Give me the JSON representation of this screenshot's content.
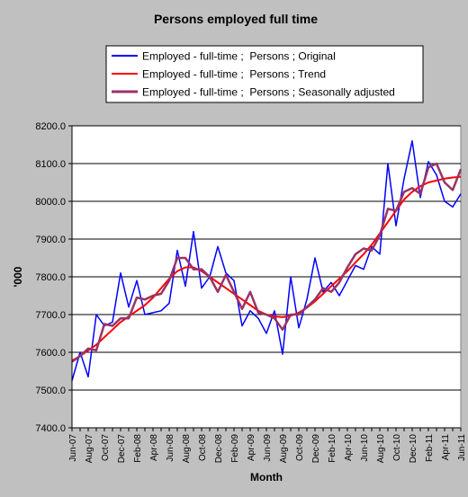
{
  "chart_data": {
    "type": "line",
    "title": "Persons employed full time",
    "xlabel": "Month",
    "ylabel": "'000",
    "ylim": [
      7400,
      8200
    ],
    "yticks": [
      "7400.0",
      "7500.0",
      "7600.0",
      "7700.0",
      "7800.0",
      "7900.0",
      "8000.0",
      "8100.0",
      "8200.0"
    ],
    "grid": true,
    "legend_position": "top",
    "x": [
      "Jun-07",
      "Jul-07",
      "Aug-07",
      "Sep-07",
      "Oct-07",
      "Nov-07",
      "Dec-07",
      "Jan-08",
      "Feb-08",
      "Mar-08",
      "Apr-08",
      "May-08",
      "Jun-08",
      "Jul-08",
      "Aug-08",
      "Sep-08",
      "Oct-08",
      "Nov-08",
      "Dec-08",
      "Jan-09",
      "Feb-09",
      "Mar-09",
      "Apr-09",
      "May-09",
      "Jun-09",
      "Jul-09",
      "Aug-09",
      "Sep-09",
      "Oct-09",
      "Nov-09",
      "Dec-09",
      "Jan-10",
      "Feb-10",
      "Mar-10",
      "Apr-10",
      "May-10",
      "Jun-10",
      "Jul-10",
      "Aug-10",
      "Sep-10",
      "Oct-10",
      "Nov-10",
      "Dec-10",
      "Jan-11",
      "Feb-11",
      "Mar-11",
      "Apr-11",
      "May-11",
      "Jun-11"
    ],
    "x_tick_labels": [
      "Jun-07",
      "Aug-07",
      "Oct-07",
      "Dec-07",
      "Feb-08",
      "Apr-08",
      "Jun-08",
      "Aug-08",
      "Oct-08",
      "Dec-08",
      "Feb-09",
      "Apr-09",
      "Jun-09",
      "Aug-09",
      "Oct-09",
      "Dec-09",
      "Feb-10",
      "Apr-10",
      "Jun-10",
      "Aug-10",
      "Oct-10",
      "Dec-10",
      "Feb-11",
      "Apr-11",
      "Jun-11"
    ],
    "series": [
      {
        "name": "Employed - full-time ;  Persons ; Original",
        "color": "#0000ff",
        "values": [
          7525,
          7600,
          7535,
          7700,
          7670,
          7680,
          7810,
          7720,
          7790,
          7700,
          7705,
          7710,
          7730,
          7870,
          7775,
          7920,
          7770,
          7800,
          7880,
          7810,
          7790,
          7670,
          7710,
          7690,
          7650,
          7710,
          7595,
          7800,
          7665,
          7740,
          7850,
          7760,
          7785,
          7750,
          7790,
          7830,
          7820,
          7880,
          7860,
          8100,
          7935,
          8060,
          8160,
          8010,
          8105,
          8070,
          8000,
          7985,
          8020
        ]
      },
      {
        "name": "Employed - full-time ;  Persons ; Trend",
        "color": "#ff0000",
        "values": [
          7578,
          7590,
          7605,
          7620,
          7640,
          7660,
          7680,
          7695,
          7710,
          7725,
          7745,
          7770,
          7795,
          7815,
          7825,
          7825,
          7815,
          7800,
          7785,
          7770,
          7755,
          7740,
          7725,
          7710,
          7700,
          7695,
          7693,
          7697,
          7705,
          7718,
          7735,
          7755,
          7775,
          7795,
          7815,
          7838,
          7860,
          7885,
          7915,
          7945,
          7975,
          8005,
          8025,
          8040,
          8050,
          8055,
          8060,
          8063,
          8065
        ]
      },
      {
        "name": "Employed - full-time ;  Persons ; Seasonally adjusted",
        "color": "#993366",
        "values": [
          7575,
          7590,
          7610,
          7605,
          7675,
          7670,
          7690,
          7690,
          7745,
          7740,
          7750,
          7755,
          7790,
          7850,
          7850,
          7820,
          7820,
          7800,
          7760,
          7805,
          7760,
          7715,
          7760,
          7705,
          7700,
          7690,
          7660,
          7700,
          7700,
          7720,
          7740,
          7770,
          7760,
          7785,
          7825,
          7860,
          7875,
          7870,
          7910,
          7980,
          7975,
          8025,
          8035,
          8020,
          8090,
          8100,
          8050,
          8030,
          8085
        ]
      }
    ]
  }
}
